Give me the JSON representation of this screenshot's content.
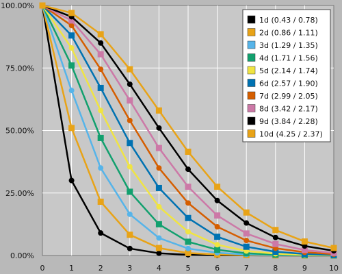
{
  "chart_data": {
    "type": "line",
    "x": [
      0,
      1,
      2,
      3,
      4,
      5,
      6,
      7,
      8,
      9,
      10
    ],
    "xlim": [
      0,
      10
    ],
    "ylim": [
      0,
      100
    ],
    "x_ticks": [
      "0",
      "1",
      "2",
      "3",
      "4",
      "5",
      "6",
      "7",
      "8",
      "9",
      "10"
    ],
    "y_ticks": [
      "0.00%",
      "25.00%",
      "50.00%",
      "75.00%",
      "100.00%"
    ],
    "y_tick_values": [
      0,
      25,
      50,
      75,
      100
    ],
    "grid": true,
    "legend_position": "top-right",
    "series": [
      {
        "name": "1d (0.43 / 0.78)",
        "color": "#000000",
        "values": [
          100,
          30,
          9,
          2.8,
          0.9,
          0.3,
          0.1,
          0.05,
          0.02,
          0.01,
          0.005
        ]
      },
      {
        "name": "2d (0.86 / 1.11)",
        "color": "#E8A317",
        "values": [
          100,
          51,
          21.5,
          8.3,
          3.0,
          1.0,
          0.4,
          0.15,
          0.05,
          0.02,
          0.01
        ]
      },
      {
        "name": "3d (1.29 / 1.35)",
        "color": "#56B4E9",
        "values": [
          100,
          66,
          35,
          16.5,
          7.0,
          2.8,
          1.1,
          0.4,
          0.15,
          0.05,
          0.02
        ]
      },
      {
        "name": "4d (1.71 / 1.56)",
        "color": "#12A06E",
        "values": [
          100,
          76,
          47,
          25.5,
          12.5,
          5.5,
          2.3,
          0.9,
          0.35,
          0.13,
          0.05
        ]
      },
      {
        "name": "5d (2.14 / 1.74)",
        "color": "#F0E442",
        "values": [
          100,
          83,
          58,
          35.5,
          19.5,
          9.5,
          4.3,
          1.8,
          0.7,
          0.28,
          0.1
        ]
      },
      {
        "name": "6d (2.57 / 1.90)",
        "color": "#0072B2",
        "values": [
          100,
          88,
          67,
          45,
          27,
          15,
          7.5,
          3.5,
          1.5,
          0.6,
          0.25
        ]
      },
      {
        "name": "7d (2.99 / 2.05)",
        "color": "#D55E00",
        "values": [
          100,
          92,
          74.5,
          54,
          35,
          21,
          11.5,
          6,
          2.9,
          1.3,
          0.55
        ]
      },
      {
        "name": "8d (3.42 / 2.17)",
        "color": "#CC79A7",
        "values": [
          100,
          94,
          80.5,
          62,
          43,
          27.5,
          16,
          8.8,
          4.6,
          2.2,
          1.0
        ]
      },
      {
        "name": "9d (3.84 / 2.28)",
        "color": "#000000",
        "values": [
          100,
          95.5,
          85,
          68.5,
          51,
          34.5,
          22,
          13,
          7.2,
          3.8,
          1.9
        ]
      },
      {
        "name": "10d (4.25 / 2.37)",
        "color": "#E8A317",
        "values": [
          100,
          97,
          88.5,
          74.5,
          58,
          41.5,
          27.5,
          17.2,
          10.2,
          5.6,
          3.0
        ]
      }
    ]
  }
}
